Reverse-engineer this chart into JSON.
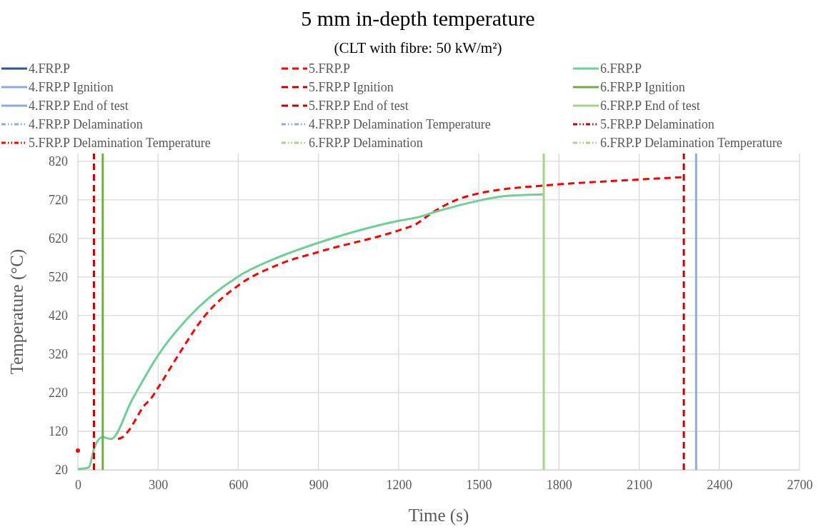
{
  "chart_data": {
    "type": "line",
    "title": "5 mm in-depth temperature",
    "subtitle": "(CLT with fibre: 50 kW/m²)",
    "xlabel": "Time (s)",
    "ylabel": "Temperature (°C)",
    "xlim": [
      0,
      2700
    ],
    "xticks": [
      0,
      300,
      600,
      900,
      1200,
      1500,
      1800,
      2100,
      2400,
      2700
    ],
    "ylim": [
      20,
      840
    ],
    "yticks": [
      20,
      120,
      220,
      320,
      420,
      520,
      620,
      720,
      820
    ],
    "grid": true,
    "legend": "top",
    "marker": "none",
    "series": [
      {
        "name": "4.FRP.P",
        "color": "#2f5597",
        "line_style": "solid"
      },
      {
        "name": "5.FRP.P",
        "color": "#ff0000",
        "line_style": "dashed",
        "x": [
          0,
          50,
          150,
          168,
          190,
          251,
          270,
          300,
          377,
          470,
          604,
          757,
          906,
          1210,
          1262,
          1324,
          1414,
          1508,
          1588,
          1741,
          2107,
          2267
        ],
        "values": [
          70,
          null,
          100,
          105,
          122,
          189,
          202,
          233,
          319,
          415,
          500,
          554,
          586,
          643,
          656,
          686,
          719,
          738,
          747,
          757,
          773,
          779
        ]
      },
      {
        "name": "6.FRP.P",
        "color": "#6fcf97",
        "line_style": "solid",
        "x": [
          0,
          40,
          62,
          91,
          123,
          203,
          302,
          408,
          604,
          757,
          906,
          1210,
          1273,
          1324,
          1508,
          1588,
          1743
        ],
        "values": [
          22,
          26,
          78,
          105,
          100,
          202,
          319,
          411,
          523,
          573,
          610,
          667,
          675,
          686,
          719,
          729,
          734
        ]
      },
      {
        "name": "4.FRP.P Ignition",
        "color": "#8faadc",
        "line_style": "solid"
      },
      {
        "name": "5.FRP.P Ignition",
        "color": "#c00000",
        "line_style": "dashed",
        "x": [
          60,
          60
        ],
        "values": [
          20,
          840
        ]
      },
      {
        "name": "6.FRP.P Ignition",
        "color": "#70ad47",
        "line_style": "solid",
        "x": [
          93,
          93
        ],
        "values": [
          20,
          840
        ]
      },
      {
        "name": "4.FRP.P End of test",
        "color": "#8faadc",
        "line_style": "solid",
        "x": [
          2313,
          2313
        ],
        "values": [
          20,
          840
        ]
      },
      {
        "name": "5.FRP.P End of test",
        "color": "#c00000",
        "line_style": "dashed",
        "x": [
          2267,
          2267
        ],
        "values": [
          20,
          840
        ]
      },
      {
        "name": "6.FRP.P End of test",
        "color": "#a9d18e",
        "line_style": "solid",
        "x": [
          1743,
          1743
        ],
        "values": [
          20,
          840
        ]
      },
      {
        "name": "4.FRP.P Delamination",
        "color": "#8faadc",
        "line_style": "dotted"
      },
      {
        "name": "4.FRP.P Delamination Temperature",
        "color": "#8faadc",
        "line_style": "dotted"
      },
      {
        "name": "5.FRP.P Delamination",
        "color": "#c00000",
        "line_style": "dotted"
      },
      {
        "name": "5.FRP.P Delamination Temperature",
        "color": "#ff0000",
        "line_style": "dotted"
      },
      {
        "name": "6.FRP.P Delamination",
        "color": "#a9d18e",
        "line_style": "dotted"
      },
      {
        "name": "6.FRP.P Delamination Temperature",
        "color": "#a9d18e",
        "line_style": "dotted"
      }
    ]
  }
}
